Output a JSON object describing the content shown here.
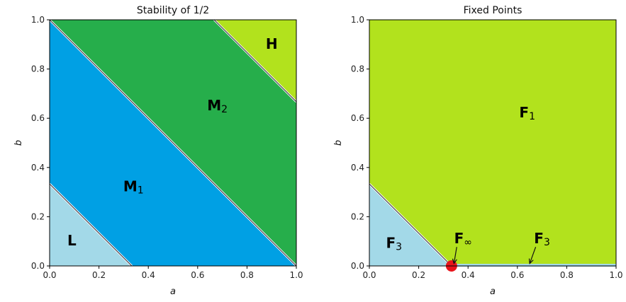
{
  "chart_data": [
    {
      "type": "area",
      "title": "Stability of 1/2",
      "xlabel": "a",
      "ylabel": "b",
      "xlim": [
        0,
        1
      ],
      "ylim": [
        0,
        1
      ],
      "xticks": [
        "0.0",
        "0.2",
        "0.4",
        "0.6",
        "0.8",
        "1.0"
      ],
      "yticks": [
        "0.0",
        "0.2",
        "0.4",
        "0.6",
        "0.8",
        "1.0"
      ],
      "regions": [
        {
          "label": "L",
          "sub": "",
          "color": "#a3d9e8",
          "polygon": [
            [
              0,
              0
            ],
            [
              0.333,
              0
            ],
            [
              0,
              0.333
            ]
          ],
          "label_at": [
            0.09,
            0.1
          ]
        },
        {
          "label": "M",
          "sub": "1",
          "color": "#00a0e4",
          "polygon": [
            [
              0.333,
              0
            ],
            [
              1,
              0
            ],
            [
              0,
              1
            ],
            [
              0,
              0.333
            ]
          ],
          "label_at": [
            0.34,
            0.32
          ]
        },
        {
          "label": "M",
          "sub": "2",
          "color": "#26ae4b",
          "polygon": [
            [
              1,
              0
            ],
            [
              1,
              0.667
            ],
            [
              0.667,
              1
            ],
            [
              0,
              1
            ]
          ],
          "label_at": [
            0.68,
            0.65
          ]
        },
        {
          "label": "H",
          "sub": "",
          "color": "#b2e21d",
          "polygon": [
            [
              0.667,
              1
            ],
            [
              1,
              1
            ],
            [
              1,
              0.667
            ]
          ],
          "label_at": [
            0.9,
            0.9
          ]
        }
      ],
      "boundaries": [
        {
          "from": [
            0,
            0.333
          ],
          "to": [
            0.333,
            0
          ]
        },
        {
          "from": [
            0,
            1
          ],
          "to": [
            1,
            0
          ]
        },
        {
          "from": [
            0.667,
            1
          ],
          "to": [
            1,
            0.667
          ]
        }
      ]
    },
    {
      "type": "area",
      "title": "Fixed Points",
      "xlabel": "a",
      "ylabel": "b",
      "xlim": [
        0,
        1
      ],
      "ylim": [
        0,
        1
      ],
      "xticks": [
        "0.0",
        "0.2",
        "0.4",
        "0.6",
        "0.8",
        "1.0"
      ],
      "yticks": [
        "0.0",
        "0.2",
        "0.4",
        "0.6",
        "0.8",
        "1.0"
      ],
      "regions": [
        {
          "label": "F",
          "sub": "1",
          "color": "#b2e21d",
          "polygon": [
            [
              0,
              0.333
            ],
            [
              0.333,
              0
            ],
            [
              1,
              0
            ],
            [
              1,
              1
            ],
            [
              0,
              1
            ]
          ],
          "label_at": [
            0.64,
            0.62
          ]
        },
        {
          "label": "F",
          "sub": "3",
          "color": "#a3d9e8",
          "polygon": [
            [
              0,
              0
            ],
            [
              0.333,
              0
            ],
            [
              0,
              0.333
            ]
          ],
          "label_at": [
            0.1,
            0.09
          ]
        }
      ],
      "boundaries": [
        {
          "from": [
            0,
            0.333
          ],
          "to": [
            0.333,
            0
          ]
        }
      ],
      "segment": {
        "from": [
          0.333,
          0
        ],
        "to": [
          1,
          0
        ],
        "color": "#a3d9e8"
      },
      "point": {
        "x": 0.333,
        "y": 0,
        "color": "#e8141b"
      },
      "annotations": [
        {
          "label": "F",
          "sub": "∞",
          "text_at": [
            0.38,
            0.1
          ],
          "arrow_to": [
            0.343,
            0.01
          ]
        },
        {
          "label": "F",
          "sub": "3",
          "text_at": [
            0.7,
            0.1
          ],
          "arrow_to": [
            0.65,
            0.01
          ]
        }
      ]
    }
  ]
}
